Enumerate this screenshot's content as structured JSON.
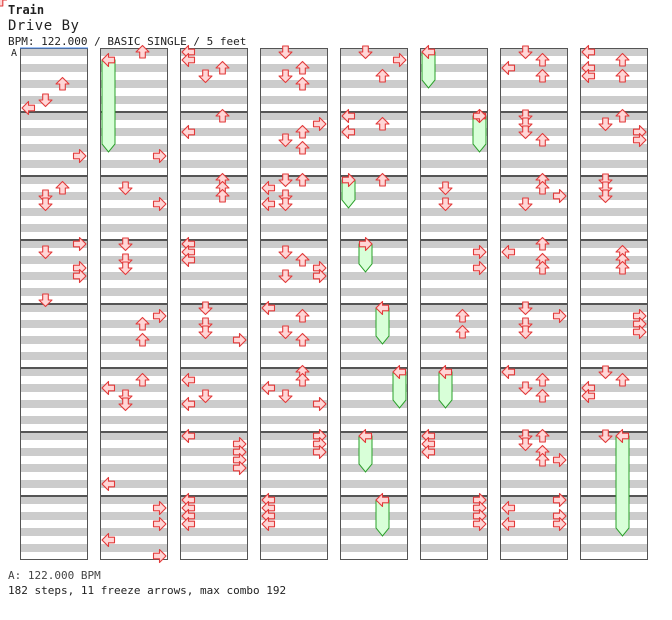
{
  "song": {
    "title": "Train",
    "artist": "Drive By",
    "info": "BPM: 122.000 / BASIC SINGLE / 5 feet"
  },
  "bpm_marker": {
    "label": "A",
    "value": "122.000"
  },
  "footer": {
    "bpm_line": "A: 122.000 BPM",
    "stats_line": "182 steps, 11 freeze arrows, max combo 192"
  },
  "colors": {
    "arrow_fill": "#ffd6d6",
    "arrow_stroke": "#e23a3a",
    "freeze_fill": "#d8ffd8",
    "freeze_stroke": "#2aa02a",
    "stripe": "#cccccc",
    "bpm_line": "#4488ee"
  },
  "chart_data": {
    "type": "step-chart",
    "lane_order": [
      "left",
      "down",
      "up",
      "right"
    ],
    "rows_per_measure": 8,
    "columns": [
      {
        "notes": [
          [
            0,
            4,
            2
          ],
          [
            0,
            6,
            1
          ],
          [
            0,
            7,
            0
          ],
          [
            1,
            5,
            3
          ],
          [
            2,
            1,
            2
          ],
          [
            2,
            2,
            1
          ],
          [
            2,
            3,
            1
          ],
          [
            3,
            0,
            3
          ],
          [
            3,
            1,
            1
          ],
          [
            3,
            3,
            3
          ],
          [
            3,
            4,
            3
          ],
          [
            3,
            7,
            1
          ]
        ],
        "freezes": []
      },
      {
        "notes": [
          [
            0,
            0,
            2
          ],
          [
            0,
            1,
            0
          ],
          [
            1,
            5,
            3
          ],
          [
            2,
            1,
            1
          ],
          [
            2,
            3,
            3
          ],
          [
            3,
            0,
            1
          ],
          [
            3,
            2,
            1
          ],
          [
            3,
            3,
            1
          ],
          [
            4,
            1,
            3
          ],
          [
            4,
            2,
            2
          ],
          [
            4,
            4,
            2
          ],
          [
            5,
            1,
            2
          ],
          [
            5,
            2,
            0
          ],
          [
            5,
            3,
            1
          ],
          [
            5,
            4,
            1
          ],
          [
            6,
            6,
            0
          ],
          [
            7,
            1,
            3
          ],
          [
            7,
            3,
            3
          ],
          [
            7,
            5,
            0
          ],
          [
            7,
            7,
            3
          ]
        ],
        "freezes": [
          [
            0,
            1,
            0,
            1,
            4,
            4
          ]
        ]
      },
      {
        "notes": [
          [
            0,
            0,
            0
          ],
          [
            0,
            1,
            0
          ],
          [
            0,
            2,
            2
          ],
          [
            0,
            3,
            1
          ],
          [
            1,
            0,
            2
          ],
          [
            1,
            2,
            0
          ],
          [
            2,
            0,
            2
          ],
          [
            2,
            1,
            2
          ],
          [
            2,
            2,
            2
          ],
          [
            3,
            0,
            0
          ],
          [
            3,
            1,
            0
          ],
          [
            3,
            2,
            0
          ],
          [
            4,
            0,
            1
          ],
          [
            4,
            2,
            1
          ],
          [
            4,
            3,
            1
          ],
          [
            4,
            4,
            3
          ],
          [
            5,
            1,
            0
          ],
          [
            5,
            3,
            1
          ],
          [
            5,
            4,
            0
          ],
          [
            6,
            0,
            0
          ],
          [
            6,
            1,
            3
          ],
          [
            6,
            2,
            3
          ],
          [
            6,
            3,
            3
          ],
          [
            6,
            4,
            3
          ],
          [
            7,
            0,
            0
          ],
          [
            7,
            1,
            0
          ],
          [
            7,
            2,
            0
          ],
          [
            7,
            3,
            0
          ]
        ],
        "freezes": []
      },
      {
        "notes": [
          [
            0,
            0,
            1
          ],
          [
            0,
            2,
            2
          ],
          [
            0,
            3,
            1
          ],
          [
            0,
            4,
            2
          ],
          [
            1,
            1,
            3
          ],
          [
            1,
            2,
            2
          ],
          [
            1,
            3,
            1
          ],
          [
            1,
            4,
            2
          ],
          [
            2,
            0,
            1
          ],
          [
            2,
            0,
            2
          ],
          [
            2,
            1,
            0
          ],
          [
            2,
            2,
            1
          ],
          [
            2,
            3,
            0
          ],
          [
            2,
            3,
            1
          ],
          [
            3,
            1,
            1
          ],
          [
            3,
            2,
            2
          ],
          [
            3,
            3,
            3
          ],
          [
            3,
            4,
            1
          ],
          [
            3,
            4,
            3
          ],
          [
            4,
            0,
            0
          ],
          [
            4,
            1,
            2
          ],
          [
            4,
            3,
            1
          ],
          [
            4,
            4,
            2
          ],
          [
            5,
            0,
            2
          ],
          [
            5,
            1,
            2
          ],
          [
            5,
            2,
            0
          ],
          [
            5,
            3,
            1
          ],
          [
            5,
            4,
            3
          ],
          [
            6,
            0,
            3
          ],
          [
            6,
            1,
            3
          ],
          [
            6,
            2,
            3
          ],
          [
            7,
            0,
            0
          ],
          [
            7,
            1,
            0
          ],
          [
            7,
            2,
            0
          ],
          [
            7,
            3,
            0
          ]
        ],
        "freezes": []
      },
      {
        "notes": [
          [
            0,
            0,
            1
          ],
          [
            0,
            1,
            3
          ],
          [
            0,
            3,
            2
          ],
          [
            1,
            0,
            0
          ],
          [
            1,
            1,
            2
          ],
          [
            1,
            2,
            0
          ],
          [
            2,
            0,
            2
          ]
        ],
        "freezes": [
          [
            2,
            0,
            0,
            2,
            3,
            3
          ],
          [
            3,
            0,
            1,
            3,
            3,
            3
          ],
          [
            4,
            0,
            2,
            4,
            4,
            0
          ],
          [
            5,
            0,
            3,
            5,
            4,
            0
          ],
          [
            6,
            0,
            1,
            6,
            4,
            0
          ],
          [
            7,
            0,
            2,
            7,
            4,
            0
          ]
        ]
      },
      {
        "notes": [
          [
            1,
            0,
            3
          ],
          [
            2,
            1,
            1
          ],
          [
            2,
            3,
            1
          ],
          [
            3,
            1,
            3
          ],
          [
            3,
            3,
            3
          ],
          [
            4,
            1,
            2
          ],
          [
            4,
            3,
            2
          ],
          [
            6,
            0,
            0
          ],
          [
            6,
            1,
            0
          ],
          [
            6,
            2,
            0
          ],
          [
            7,
            0,
            3
          ],
          [
            7,
            1,
            3
          ],
          [
            7,
            2,
            3
          ],
          [
            7,
            3,
            3
          ]
        ],
        "freezes": [
          [
            0,
            0,
            0,
            0,
            4,
            0
          ],
          [
            1,
            0,
            3,
            1,
            4,
            0
          ],
          [
            5,
            0,
            1,
            5,
            4,
            0
          ]
        ]
      },
      {
        "notes": [
          [
            0,
            0,
            1
          ],
          [
            0,
            1,
            2
          ],
          [
            0,
            2,
            0
          ],
          [
            0,
            3,
            2
          ],
          [
            1,
            0,
            1
          ],
          [
            1,
            1,
            1
          ],
          [
            1,
            2,
            1
          ],
          [
            1,
            3,
            2
          ],
          [
            2,
            0,
            2
          ],
          [
            2,
            1,
            2
          ],
          [
            2,
            2,
            3
          ],
          [
            2,
            3,
            1
          ],
          [
            3,
            0,
            2
          ],
          [
            3,
            1,
            0
          ],
          [
            3,
            2,
            2
          ],
          [
            3,
            3,
            2
          ],
          [
            4,
            0,
            1
          ],
          [
            4,
            1,
            3
          ],
          [
            4,
            2,
            1
          ],
          [
            4,
            3,
            1
          ],
          [
            5,
            0,
            0
          ],
          [
            5,
            1,
            2
          ],
          [
            5,
            2,
            1
          ],
          [
            5,
            3,
            2
          ],
          [
            6,
            0,
            1
          ],
          [
            6,
            0,
            2
          ],
          [
            6,
            1,
            1
          ],
          [
            6,
            2,
            2
          ],
          [
            6,
            3,
            2
          ],
          [
            6,
            3,
            3
          ],
          [
            7,
            0,
            3
          ],
          [
            7,
            1,
            0
          ],
          [
            7,
            2,
            3
          ],
          [
            7,
            3,
            0
          ],
          [
            7,
            3,
            3
          ]
        ],
        "freezes": []
      },
      {
        "notes": [
          [
            0,
            0,
            0
          ],
          [
            0,
            1,
            2
          ],
          [
            0,
            2,
            0
          ],
          [
            0,
            3,
            0
          ],
          [
            0,
            3,
            2
          ],
          [
            1,
            0,
            2
          ],
          [
            1,
            1,
            1
          ],
          [
            1,
            2,
            3
          ],
          [
            1,
            3,
            3
          ],
          [
            2,
            0,
            1
          ],
          [
            2,
            1,
            1
          ],
          [
            2,
            2,
            1
          ],
          [
            3,
            1,
            2
          ],
          [
            3,
            2,
            2
          ],
          [
            3,
            3,
            2
          ],
          [
            4,
            1,
            3
          ],
          [
            4,
            2,
            3
          ],
          [
            4,
            3,
            3
          ],
          [
            5,
            0,
            1
          ],
          [
            5,
            1,
            2
          ],
          [
            5,
            2,
            0
          ],
          [
            5,
            3,
            0
          ],
          [
            6,
            0,
            1
          ]
        ],
        "freezes": [
          [
            6,
            0,
            2,
            7,
            4,
            0
          ]
        ]
      }
    ]
  }
}
